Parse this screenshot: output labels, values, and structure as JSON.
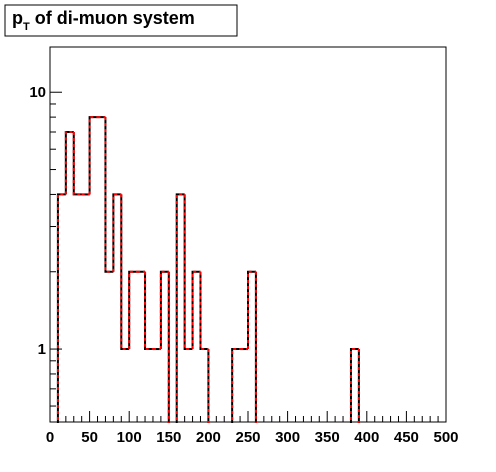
{
  "chart_data": {
    "type": "histogram",
    "title_parts": [
      "p",
      "T",
      "of di-muon system"
    ],
    "bins": [
      0,
      10,
      20,
      30,
      40,
      50,
      60,
      70,
      80,
      90,
      100,
      110,
      120,
      130,
      140,
      150,
      160,
      170,
      180,
      190,
      200,
      210,
      220,
      230,
      240,
      250,
      260,
      270,
      280,
      290,
      300,
      310,
      320,
      330,
      340,
      350,
      360,
      370,
      380,
      390,
      400,
      410,
      420,
      430,
      440,
      450,
      460,
      470,
      480,
      490,
      500
    ],
    "values": [
      0,
      4,
      7,
      4,
      4,
      8,
      8,
      2,
      4,
      1,
      2,
      2,
      1,
      1,
      2,
      0,
      4,
      1,
      2,
      1,
      0,
      0,
      0,
      1,
      1,
      2,
      0,
      0,
      0,
      0,
      0,
      0,
      0,
      0,
      0,
      0,
      0,
      0,
      1,
      0,
      0,
      0,
      0,
      0,
      0,
      0,
      0,
      0,
      0,
      0
    ],
    "color": "#ff0000",
    "line_color": "#000000",
    "xlim": [
      0,
      500
    ],
    "xticks": [
      0,
      50,
      100,
      150,
      200,
      250,
      300,
      350,
      400,
      450,
      500
    ],
    "xminorticks": [
      10,
      20,
      30,
      40,
      60,
      70,
      80,
      90,
      110,
      120,
      130,
      140,
      160,
      170,
      180,
      190,
      210,
      220,
      230,
      240,
      260,
      270,
      280,
      290,
      310,
      320,
      330,
      340,
      360,
      370,
      380,
      390,
      410,
      420,
      430,
      440,
      460,
      470,
      480,
      490
    ],
    "ylim": [
      0.52,
      15
    ],
    "ylog": true,
    "yticks": [
      1,
      10
    ],
    "yminorticks": [
      0.6,
      0.7,
      0.8,
      0.9,
      2,
      3,
      4,
      5,
      6,
      7,
      8,
      9
    ]
  }
}
